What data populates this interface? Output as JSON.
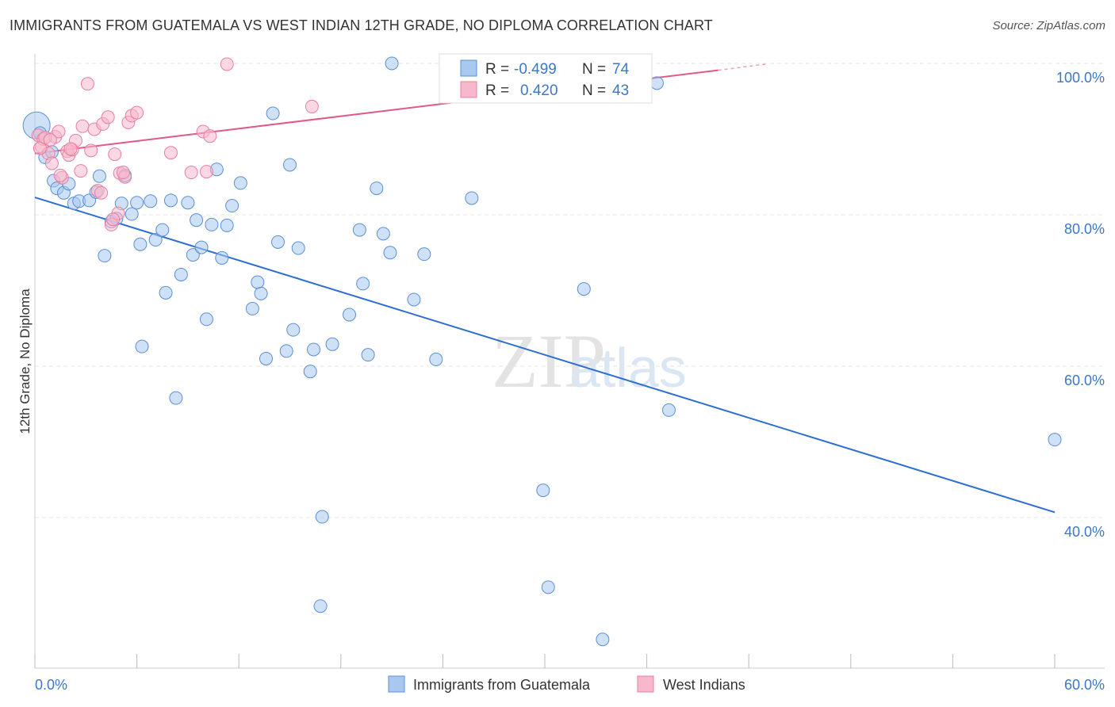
{
  "title": "IMMIGRANTS FROM GUATEMALA VS WEST INDIAN 12TH GRADE, NO DIPLOMA CORRELATION CHART",
  "source": "Source: ZipAtlas.com",
  "watermark": {
    "zip": "ZIP",
    "atlas": "atlas"
  },
  "legend_stats": [
    {
      "r_label": "R =",
      "r_value": "-0.499",
      "n_label": "N =",
      "n_value": "74"
    },
    {
      "r_label": "R =",
      "r_value": "0.420",
      "n_label": "N =",
      "n_value": "43"
    }
  ],
  "colors": {
    "guatemala_fill": "#a8c8f0",
    "guatemala_stroke": "#5b8fd6",
    "guatemala_line": "#2d6fd1",
    "westindian_fill": "#f7b8cc",
    "westindian_stroke": "#e87fa0",
    "westindian_line": "#e2588a",
    "axis_text": "#3b78c9",
    "grid": "#e6e6e6"
  },
  "chart_data": {
    "type": "scatter",
    "title": "IMMIGRANTS FROM GUATEMALA VS WEST INDIAN 12TH GRADE, NO DIPLOMA CORRELATION CHART",
    "xlabel": "",
    "ylabel": "12th Grade, No Diploma",
    "xlim": [
      0,
      60
    ],
    "ylim": [
      22,
      102
    ],
    "x_tick_labels": [
      "0.0%",
      "60.0%"
    ],
    "y_ticks": [
      40,
      60,
      80,
      100
    ],
    "y_tick_labels": [
      "40.0%",
      "60.0%",
      "80.0%",
      "100.0%"
    ],
    "grid": true,
    "legend_position": "bottom",
    "series": [
      {
        "name": "Immigrants from Guatemala",
        "color": "#a8c8f0",
        "trend": {
          "x": [
            0,
            60
          ],
          "y": [
            82.3,
            40.7
          ]
        },
        "points": [
          {
            "x": 0.1,
            "y": 91.8,
            "big": true
          },
          {
            "x": 0.6,
            "y": 87.6
          },
          {
            "x": 1.1,
            "y": 84.5
          },
          {
            "x": 1.3,
            "y": 83.5
          },
          {
            "x": 1.7,
            "y": 82.9
          },
          {
            "x": 2.0,
            "y": 84.1
          },
          {
            "x": 2.3,
            "y": 81.5
          },
          {
            "x": 2.6,
            "y": 81.8
          },
          {
            "x": 3.2,
            "y": 81.9
          },
          {
            "x": 3.6,
            "y": 83.0
          },
          {
            "x": 3.8,
            "y": 85.1
          },
          {
            "x": 4.1,
            "y": 74.6
          },
          {
            "x": 4.5,
            "y": 79.1
          },
          {
            "x": 4.8,
            "y": 79.5
          },
          {
            "x": 5.1,
            "y": 81.5
          },
          {
            "x": 5.3,
            "y": 85.2
          },
          {
            "x": 5.7,
            "y": 80.1
          },
          {
            "x": 6.0,
            "y": 81.6
          },
          {
            "x": 6.2,
            "y": 76.1
          },
          {
            "x": 6.3,
            "y": 62.6
          },
          {
            "x": 6.8,
            "y": 81.8
          },
          {
            "x": 7.1,
            "y": 76.7
          },
          {
            "x": 7.5,
            "y": 78.0
          },
          {
            "x": 7.7,
            "y": 69.7
          },
          {
            "x": 8.0,
            "y": 81.9
          },
          {
            "x": 8.3,
            "y": 55.8
          },
          {
            "x": 8.6,
            "y": 72.1
          },
          {
            "x": 9.0,
            "y": 81.6
          },
          {
            "x": 9.3,
            "y": 74.7
          },
          {
            "x": 9.5,
            "y": 79.3
          },
          {
            "x": 9.8,
            "y": 75.7
          },
          {
            "x": 10.1,
            "y": 66.2
          },
          {
            "x": 10.4,
            "y": 78.7
          },
          {
            "x": 10.7,
            "y": 86.0
          },
          {
            "x": 11.0,
            "y": 74.3
          },
          {
            "x": 11.3,
            "y": 78.6
          },
          {
            "x": 11.6,
            "y": 81.2
          },
          {
            "x": 12.1,
            "y": 84.2
          },
          {
            "x": 12.8,
            "y": 67.6
          },
          {
            "x": 13.1,
            "y": 71.1
          },
          {
            "x": 13.3,
            "y": 69.6
          },
          {
            "x": 13.6,
            "y": 61.0
          },
          {
            "x": 14.0,
            "y": 93.4
          },
          {
            "x": 14.3,
            "y": 76.4
          },
          {
            "x": 14.8,
            "y": 62.0
          },
          {
            "x": 15.0,
            "y": 86.6
          },
          {
            "x": 15.2,
            "y": 64.8
          },
          {
            "x": 15.5,
            "y": 75.6
          },
          {
            "x": 16.2,
            "y": 59.3
          },
          {
            "x": 16.4,
            "y": 62.2
          },
          {
            "x": 16.8,
            "y": 28.3
          },
          {
            "x": 16.9,
            "y": 40.1
          },
          {
            "x": 17.5,
            "y": 62.9
          },
          {
            "x": 18.5,
            "y": 66.8
          },
          {
            "x": 19.1,
            "y": 78.0
          },
          {
            "x": 19.3,
            "y": 70.9
          },
          {
            "x": 19.6,
            "y": 61.5
          },
          {
            "x": 20.1,
            "y": 83.5
          },
          {
            "x": 20.5,
            "y": 77.5
          },
          {
            "x": 20.9,
            "y": 75.0
          },
          {
            "x": 21.0,
            "y": 100.0
          },
          {
            "x": 22.3,
            "y": 68.8
          },
          {
            "x": 22.9,
            "y": 74.8
          },
          {
            "x": 23.6,
            "y": 60.9
          },
          {
            "x": 25.7,
            "y": 82.2
          },
          {
            "x": 29.9,
            "y": 43.6
          },
          {
            "x": 30.2,
            "y": 30.8
          },
          {
            "x": 32.3,
            "y": 70.2
          },
          {
            "x": 33.4,
            "y": 23.9
          },
          {
            "x": 36.6,
            "y": 97.4
          },
          {
            "x": 37.3,
            "y": 54.2
          },
          {
            "x": 60.0,
            "y": 50.3
          },
          {
            "x": 0.3,
            "y": 90.8
          },
          {
            "x": 1.0,
            "y": 88.3
          }
        ]
      },
      {
        "name": "West Indians",
        "color": "#f7b8cc",
        "trend": {
          "x": [
            0,
            40.2
          ],
          "y": [
            88.1,
            99.1
          ]
        },
        "trend_dash": {
          "x": [
            40.2,
            43.0
          ],
          "y": [
            99.1,
            99.9
          ]
        },
        "points": [
          {
            "x": 0.2,
            "y": 90.5
          },
          {
            "x": 0.4,
            "y": 89.0
          },
          {
            "x": 0.5,
            "y": 90.0
          },
          {
            "x": 0.8,
            "y": 88.1
          },
          {
            "x": 1.0,
            "y": 86.8
          },
          {
            "x": 1.2,
            "y": 90.3
          },
          {
            "x": 1.4,
            "y": 91.0
          },
          {
            "x": 1.6,
            "y": 84.9
          },
          {
            "x": 1.9,
            "y": 88.4
          },
          {
            "x": 2.0,
            "y": 87.9
          },
          {
            "x": 2.2,
            "y": 88.6
          },
          {
            "x": 2.4,
            "y": 89.8
          },
          {
            "x": 2.7,
            "y": 85.8
          },
          {
            "x": 2.8,
            "y": 91.7
          },
          {
            "x": 3.1,
            "y": 97.3
          },
          {
            "x": 3.3,
            "y": 88.5
          },
          {
            "x": 3.5,
            "y": 91.3
          },
          {
            "x": 3.7,
            "y": 83.2
          },
          {
            "x": 4.0,
            "y": 92.0
          },
          {
            "x": 4.3,
            "y": 92.9
          },
          {
            "x": 4.5,
            "y": 78.7
          },
          {
            "x": 4.7,
            "y": 88.0
          },
          {
            "x": 4.9,
            "y": 80.2
          },
          {
            "x": 5.0,
            "y": 85.5
          },
          {
            "x": 5.3,
            "y": 85.0
          },
          {
            "x": 5.5,
            "y": 92.2
          },
          {
            "x": 5.7,
            "y": 93.1
          },
          {
            "x": 6.0,
            "y": 93.5
          },
          {
            "x": 8.0,
            "y": 88.2
          },
          {
            "x": 9.2,
            "y": 85.6
          },
          {
            "x": 9.9,
            "y": 91.0
          },
          {
            "x": 10.1,
            "y": 85.7
          },
          {
            "x": 10.3,
            "y": 90.4
          },
          {
            "x": 11.3,
            "y": 99.9
          },
          {
            "x": 16.3,
            "y": 94.3
          },
          {
            "x": 0.3,
            "y": 88.8
          },
          {
            "x": 0.6,
            "y": 90.2
          },
          {
            "x": 1.5,
            "y": 85.2
          },
          {
            "x": 2.1,
            "y": 88.7
          },
          {
            "x": 3.9,
            "y": 82.9
          },
          {
            "x": 4.6,
            "y": 79.4
          },
          {
            "x": 5.2,
            "y": 85.6
          },
          {
            "x": 0.9,
            "y": 89.9
          }
        ]
      }
    ]
  }
}
